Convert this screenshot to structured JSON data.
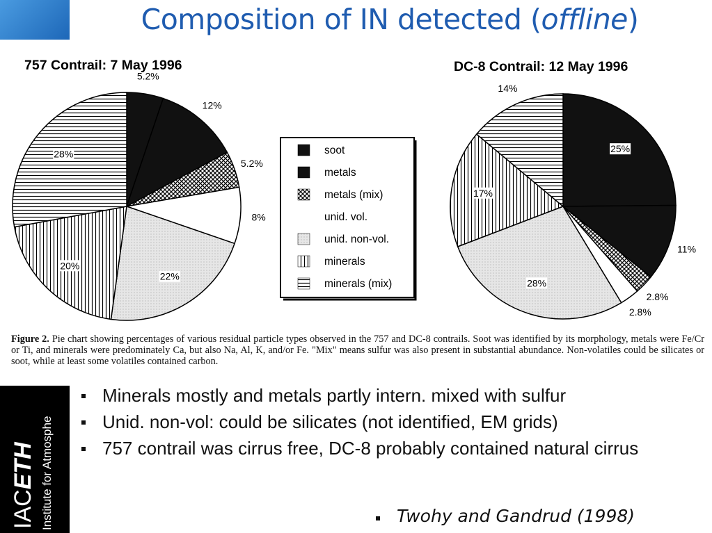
{
  "title": {
    "text": "Composition of IN detected (",
    "italic": "offline",
    "end": ")"
  },
  "legend": {
    "entries": [
      "soot",
      "metals",
      "metals (mix)",
      "unid. vol.",
      "unid. non-vol.",
      "minerals",
      "minerals (mix)"
    ],
    "patterns": [
      "solid",
      "solid",
      "cross",
      "white",
      "dots",
      "vlines",
      "hlines"
    ]
  },
  "chart_data": [
    {
      "type": "pie",
      "title": "757 Contrail: 7 May 1996",
      "values": [
        5.2,
        12,
        5.2,
        8,
        22,
        20,
        28
      ],
      "value_labels": [
        "5.2%",
        "12%",
        "5.2%",
        "8%",
        "22%",
        "20%",
        "28%"
      ]
    },
    {
      "type": "pie",
      "title": "DC-8 Contrail: 12 May 1996",
      "values": [
        25,
        11,
        2.8,
        2.8,
        28,
        17,
        14
      ],
      "value_labels": [
        "25%",
        "11%",
        "2.8%",
        "2.8%",
        "28%",
        "17%",
        "14%"
      ]
    }
  ],
  "caption": {
    "label": "Figure 2.",
    "text": "Pie chart showing percentages of various residual particle types observed in the 757 and DC-8 contrails.  Soot was identified by its morphology, metals were Fe/Cr or Ti, and minerals were predominately Ca, but also Na, Al, K, and/or Fe.  \"Mix\" means sulfur was also present in substantial abundance.  Non-volatiles could be silicates or soot, while at least some volatiles contained carbon."
  },
  "bullets": [
    "Minerals mostly and metals partly intern. mixed with sulfur",
    "Unid. non-vol: could be silicates (not identified, EM grids)",
    "757 contrail was cirrus free, DC-8 probably contained natural cirrus"
  ],
  "reference": "Twohy and Gandrud (1998)",
  "logo": {
    "iac": "IAC",
    "eth": "ETH",
    "institute": "Institute for Atmosphe"
  }
}
